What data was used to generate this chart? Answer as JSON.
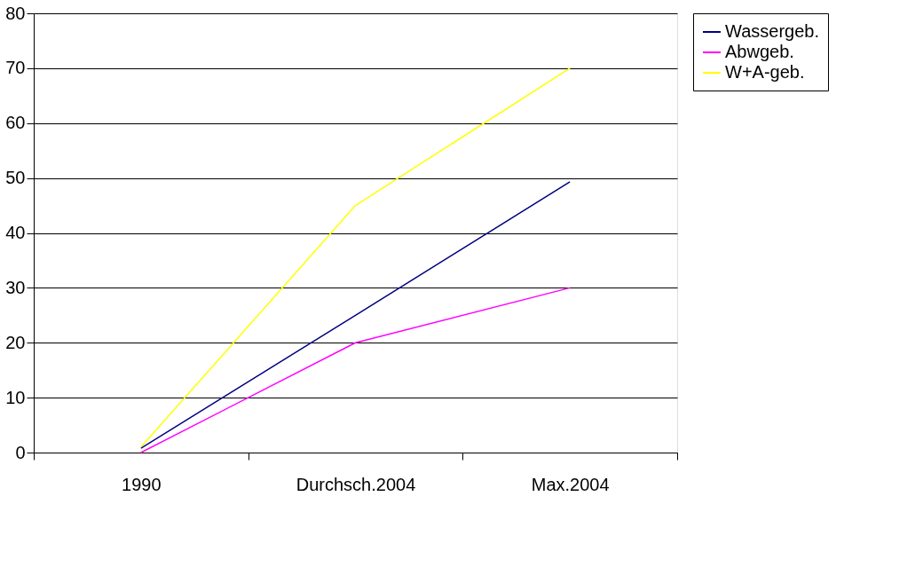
{
  "chart_data": {
    "type": "line",
    "categories": [
      "1990",
      "Durchsch.2004",
      "Max.2004"
    ],
    "series": [
      {
        "name": "Wassergeb.",
        "color": "#000080",
        "values": [
          0.8,
          25,
          49.3
        ]
      },
      {
        "name": "Abwgeb.",
        "color": "#ff00ff",
        "values": [
          0,
          20,
          30
        ]
      },
      {
        "name": "W+A-geb.",
        "color": "#ffff00",
        "values": [
          1,
          45,
          70
        ]
      }
    ],
    "ylim": [
      0,
      80
    ],
    "yticks": [
      0,
      10,
      20,
      30,
      40,
      50,
      60,
      70,
      80
    ],
    "grid": "y",
    "legend": "right",
    "marker": "none",
    "line_style": "solid"
  }
}
